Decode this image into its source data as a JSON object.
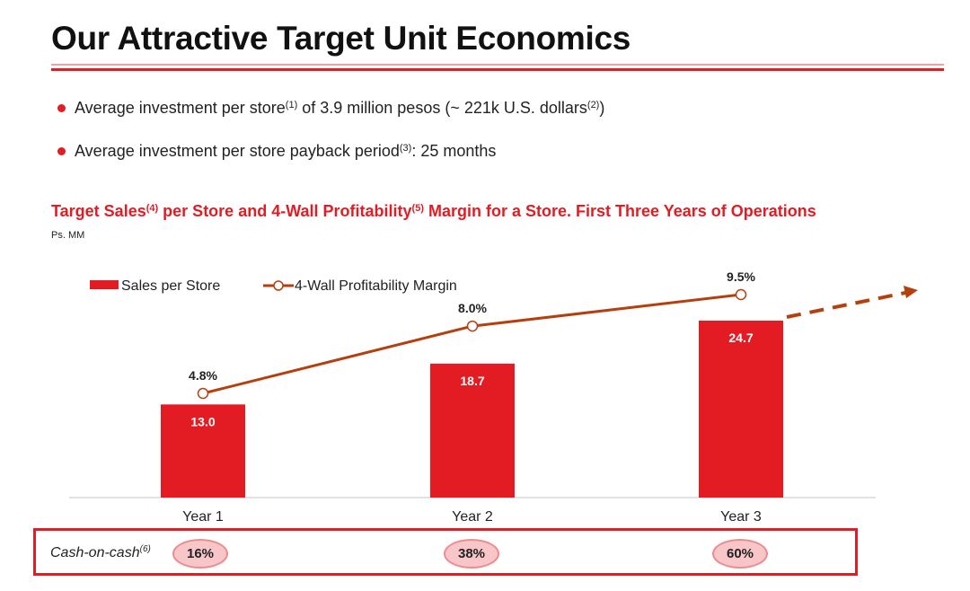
{
  "header": {
    "title": "Our Attractive Target Unit Economics"
  },
  "bullets": [
    {
      "text_a": "Average investment per store",
      "sup_a": "(1)",
      "text_b": " of 3.9 million pesos (~ 221k U.S. dollars",
      "sup_b": "(2)",
      "text_c": ")"
    },
    {
      "text_a": "Average investment per store payback period",
      "sup_a": "(3)",
      "text_b": ": 25 months"
    }
  ],
  "chart_header": {
    "part1": "Target Sales",
    "sup1": "(4)",
    "part2": " per Store and 4-Wall Profitability",
    "sup2": "(5)",
    "part3": " Margin for a Store. First Three Years of Operations",
    "units": "Ps. MM"
  },
  "colors": {
    "bar": "#e31b23",
    "line": "#b5400f",
    "accent": "#e31b23"
  },
  "chart_data": {
    "type": "bar",
    "title": "Target Sales per Store and 4-Wall Profitability Margin for a Store. First Three Years of Operations",
    "ylabel": "Ps. MM",
    "xlabel": "",
    "categories": [
      "Year 1",
      "Year 2",
      "Year 3"
    ],
    "series": [
      {
        "name": "Sales per Store",
        "type": "bar",
        "values": [
          13.0,
          18.7,
          24.7
        ],
        "labels": [
          "13.0",
          "18.7",
          "24.7"
        ]
      },
      {
        "name": "4-Wall Profitability Margin",
        "type": "line",
        "values": [
          4.8,
          8.0,
          9.5
        ],
        "labels": [
          "4.8%",
          "8.0%",
          "9.5%"
        ],
        "trend": "dashed-arrow-up"
      }
    ],
    "grid": false,
    "legend": "top-left"
  },
  "cash_on_cash": {
    "label": "Cash-on-cash",
    "sup": "(6)",
    "values": [
      "16%",
      "38%",
      "60%"
    ]
  }
}
